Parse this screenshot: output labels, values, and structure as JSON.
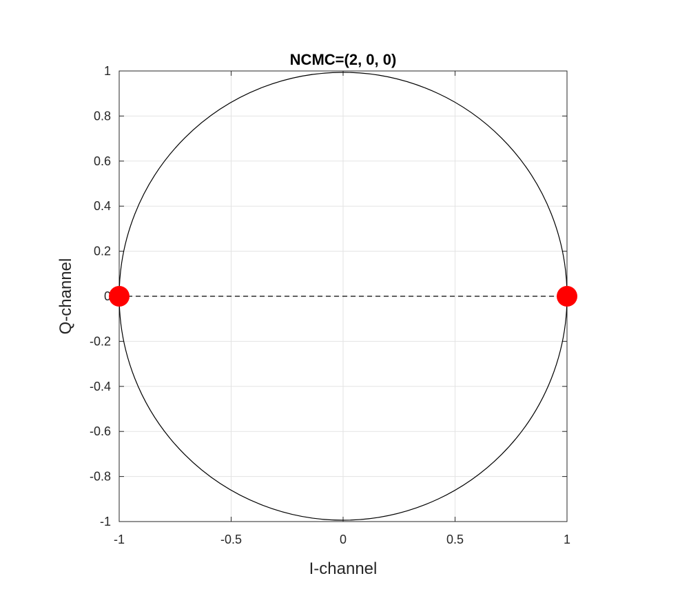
{
  "chart_data": {
    "type": "scatter",
    "title": "NCMC=(2, 0, 0)",
    "xlabel": "I-channel",
    "ylabel": "Q-channel",
    "xlim": [
      -1,
      1
    ],
    "ylim": [
      -1,
      1
    ],
    "x_ticks": [
      -1,
      -0.5,
      0,
      0.5,
      1
    ],
    "x_tick_labels": [
      "-1",
      "-0.5",
      "0",
      "0.5",
      "1"
    ],
    "y_ticks": [
      -1,
      -0.8,
      -0.6,
      -0.4,
      -0.2,
      0,
      0.2,
      0.4,
      0.6,
      0.8,
      1
    ],
    "y_tick_labels": [
      "-1",
      "-0.8",
      "-0.6",
      "-0.4",
      "-0.2",
      "0",
      "0.2",
      "0.4",
      "0.6",
      "0.8",
      "1"
    ],
    "grid": true,
    "aspect": "equal",
    "unit_circle": {
      "radius": 1,
      "color": "#000000"
    },
    "reference_line": {
      "y": 0,
      "x_range": [
        -1,
        1
      ],
      "style": "dashed",
      "color": "#000000"
    },
    "points": [
      {
        "x": -1,
        "y": 0
      },
      {
        "x": 1,
        "y": 0
      }
    ],
    "point_color": "#ff0000"
  }
}
